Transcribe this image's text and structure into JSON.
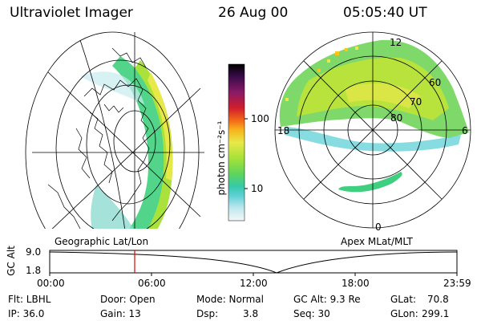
{
  "header": {
    "title": "Ultraviolet Imager",
    "date": "26 Aug 00",
    "time": "05:05:40 UT"
  },
  "colorbar": {
    "label": "photon cm⁻²s⁻¹",
    "ticks": [
      "100",
      "10"
    ],
    "colors": [
      "#000000",
      "#2b0b3f",
      "#6a1b6e",
      "#a0175f",
      "#d11e2b",
      "#f26a1a",
      "#f7a51c",
      "#e8e84a",
      "#b6e534",
      "#70d94f",
      "#39c97c",
      "#3cc6c4",
      "#7fd6de",
      "#c8ecef",
      "#f4f7f7"
    ]
  },
  "polar_plot": {
    "lat_labels": [
      "60",
      "70",
      "80"
    ],
    "mlt_labels": [
      "12",
      "18",
      "6",
      "0"
    ]
  },
  "panel_labels": {
    "left": "Geographic Lat/Lon",
    "right": "Apex MLat/MLT"
  },
  "altitude_plot": {
    "ylabel": "GC Alt",
    "yticks": [
      "9.0",
      "1.8"
    ],
    "xticks": [
      "00:00",
      "06:00",
      "12:00",
      "18:00",
      "23:59"
    ],
    "marker_time": "05:05"
  },
  "footer": {
    "filter": "Flt: LBHL",
    "ip": "IP: 36.0",
    "door": "Door: Open",
    "gain": "Gain: 13",
    "mode": "Mode: Normal",
    "dsp_label": "Dsp:",
    "dsp_value": "3.8",
    "gc_alt": "GC Alt: 9.3 Re",
    "seq": "Seq: 30",
    "glat_label": "GLat:",
    "glat_value": "70.8",
    "glon_label": "GLon:",
    "glon_value": "299.1"
  }
}
